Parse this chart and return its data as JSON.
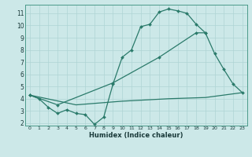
{
  "xlabel": "Humidex (Indice chaleur)",
  "xlim": [
    -0.5,
    23.5
  ],
  "ylim": [
    1.8,
    11.7
  ],
  "yticks": [
    2,
    3,
    4,
    5,
    6,
    7,
    8,
    9,
    10,
    11
  ],
  "xticks": [
    0,
    1,
    2,
    3,
    4,
    5,
    6,
    7,
    8,
    9,
    10,
    11,
    12,
    13,
    14,
    15,
    16,
    17,
    18,
    19,
    20,
    21,
    22,
    23
  ],
  "bg_color": "#cce8e8",
  "line_color": "#2a7a6a",
  "grid_color": "#afd4d4",
  "line1_x": [
    0,
    1,
    2,
    3,
    4,
    5,
    6,
    7,
    8,
    9,
    10,
    11,
    12,
    13,
    14,
    15,
    16,
    17,
    18,
    19
  ],
  "line1_y": [
    4.3,
    4.0,
    3.3,
    2.8,
    3.1,
    2.8,
    2.7,
    1.9,
    2.5,
    5.2,
    7.4,
    8.0,
    9.9,
    10.1,
    11.1,
    11.35,
    11.2,
    11.0,
    10.1,
    9.4
  ],
  "line2_x": [
    0,
    3,
    9,
    14,
    18,
    19,
    20,
    21,
    22,
    23
  ],
  "line2_y": [
    4.3,
    3.5,
    5.3,
    7.4,
    9.4,
    9.4,
    7.7,
    6.4,
    5.2,
    4.5
  ],
  "line3_x": [
    0,
    5,
    10,
    15,
    19,
    20,
    21,
    22,
    23
  ],
  "line3_y": [
    4.3,
    3.5,
    3.8,
    4.0,
    4.1,
    4.2,
    4.3,
    4.4,
    4.5
  ]
}
